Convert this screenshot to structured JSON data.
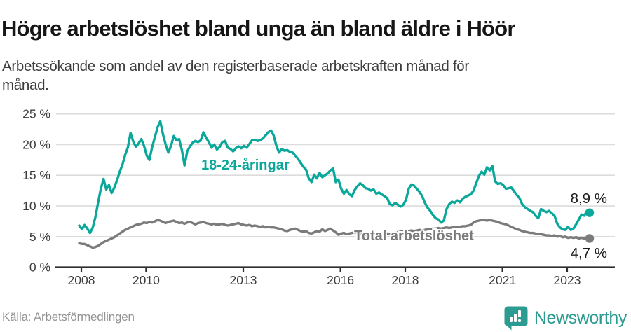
{
  "header": {
    "title": "Högre arbetslöshet bland unga än bland äldre i Höör",
    "subtitle_line1": "Arbetssökande som andel av den registerbaserade arbetskraften månad för",
    "subtitle_line2": "månad."
  },
  "footer": {
    "source": "Källa: Arbetsförmedlingen",
    "brand": "Newsworthy",
    "brand_icon": "newsworthy-chart-bubble-icon"
  },
  "colors": {
    "accent_teal": "#0aa79b",
    "series_gray": "#7b7b7b",
    "logo_teal": "#2c9b91",
    "grid": "#dcdcdc",
    "axis": "#2e2e2e",
    "tick_label": "#3c3c3c",
    "value_label": "#1c1c1c",
    "title_text": "#161616",
    "subtitle_text": "#3d3d3d",
    "source_text": "#929292"
  },
  "chart_data": {
    "type": "line",
    "x_unit": "month",
    "x_start": "2008-01",
    "x_end": "2023-10",
    "x_tick_years": [
      2008,
      2010,
      2013,
      2016,
      2018,
      2021,
      2023
    ],
    "x_tick_labels": [
      "2008",
      "2010",
      "2013",
      "2016",
      "2018",
      "2021",
      "2023"
    ],
    "ylim": [
      0,
      25
    ],
    "y_ticks": [
      0,
      5,
      10,
      15,
      20,
      25
    ],
    "y_tick_labels": [
      "0 %",
      "5 %",
      "10 %",
      "15 %",
      "20 %",
      "25 %"
    ],
    "grid": true,
    "legend_position": "inline-labels",
    "series": [
      {
        "id": "youth",
        "name": "18-24-åringar",
        "color": "#0aa79b",
        "end_label": "8,9 %",
        "end_value": 8.9,
        "values": [
          6.8,
          6.2,
          6.9,
          6.3,
          5.6,
          6.5,
          8.2,
          10.6,
          12.8,
          14.4,
          12.7,
          13.4,
          12.1,
          13.0,
          14.2,
          15.6,
          16.7,
          18.3,
          19.5,
          21.9,
          20.5,
          19.6,
          20.2,
          20.9,
          19.8,
          18.2,
          17.5,
          19.6,
          21.2,
          22.8,
          23.8,
          21.7,
          20.0,
          18.7,
          19.8,
          21.4,
          20.7,
          20.9,
          19.1,
          16.6,
          18.9,
          19.7,
          20.3,
          20.6,
          20.4,
          20.7,
          22.0,
          21.1,
          20.4,
          19.5,
          20.0,
          19.2,
          19.6,
          20.4,
          20.6,
          19.5,
          19.3,
          18.9,
          19.4,
          19.7,
          19.4,
          19.8,
          19.5,
          20.1,
          20.7,
          20.8,
          20.6,
          20.7,
          21.0,
          21.5,
          22.0,
          22.3,
          21.5,
          19.8,
          18.7,
          19.3,
          19.0,
          19.1,
          18.8,
          18.7,
          18.2,
          17.7,
          17.0,
          16.4,
          15.9,
          14.5,
          13.9,
          15.1,
          14.5,
          15.4,
          14.7,
          15.0,
          15.3,
          15.8,
          16.1,
          13.9,
          14.3,
          12.8,
          12.0,
          12.6,
          11.9,
          11.6,
          12.6,
          13.2,
          13.7,
          13.4,
          12.9,
          12.8,
          12.5,
          12.7,
          12.0,
          12.2,
          11.9,
          11.6,
          11.3,
          10.3,
          10.1,
          10.5,
          10.2,
          9.9,
          10.2,
          11.0,
          12.8,
          13.5,
          13.3,
          12.8,
          12.3,
          11.6,
          10.5,
          9.7,
          9.2,
          8.5,
          8.0,
          7.8,
          7.3,
          7.6,
          9.5,
          10.3,
          10.7,
          10.5,
          10.9,
          10.6,
          11.2,
          11.5,
          11.7,
          11.9,
          12.5,
          13.7,
          14.9,
          15.6,
          15.1,
          16.3,
          15.8,
          16.5,
          14.0,
          13.6,
          13.7,
          13.4,
          12.8,
          12.9,
          13.0,
          12.4,
          11.8,
          11.3,
          10.3,
          9.8,
          9.5,
          9.2,
          9.0,
          8.4,
          8.0,
          9.5,
          9.2,
          9.0,
          9.2,
          8.8,
          8.4,
          7.1,
          6.5,
          6.2,
          6.1,
          6.6,
          6.1,
          6.3,
          7.0,
          7.8,
          8.6,
          8.4,
          9.2,
          8.9
        ]
      },
      {
        "id": "total",
        "name": "Total arbetslöshet",
        "color": "#7b7b7b",
        "end_label": "4,7 %",
        "end_value": 4.7,
        "values": [
          3.9,
          3.8,
          3.8,
          3.6,
          3.4,
          3.2,
          3.3,
          3.5,
          3.8,
          4.1,
          4.3,
          4.5,
          4.7,
          4.9,
          5.2,
          5.5,
          5.8,
          6.1,
          6.3,
          6.5,
          6.7,
          6.9,
          7.0,
          7.1,
          7.3,
          7.2,
          7.4,
          7.3,
          7.5,
          7.7,
          7.6,
          7.4,
          7.2,
          7.4,
          7.5,
          7.6,
          7.4,
          7.2,
          7.3,
          7.1,
          7.3,
          7.4,
          7.2,
          7.0,
          7.2,
          7.3,
          7.4,
          7.2,
          7.1,
          7.0,
          7.1,
          6.9,
          7.0,
          7.1,
          6.9,
          6.8,
          6.9,
          7.0,
          7.1,
          7.2,
          7.0,
          6.9,
          6.8,
          6.9,
          6.7,
          6.8,
          6.7,
          6.6,
          6.7,
          6.5,
          6.6,
          6.5,
          6.5,
          6.4,
          6.3,
          6.2,
          6.0,
          5.9,
          6.1,
          6.2,
          6.3,
          6.1,
          5.9,
          5.8,
          5.9,
          5.6,
          5.5,
          5.7,
          5.9,
          5.8,
          6.2,
          5.9,
          6.1,
          6.3,
          6.0,
          5.7,
          5.3,
          5.5,
          5.6,
          5.4,
          5.5,
          5.6,
          5.7,
          5.5,
          5.4,
          5.5,
          5.3,
          5.4,
          5.5,
          5.4,
          5.3,
          5.4,
          5.5,
          5.6,
          5.5,
          5.4,
          5.5,
          5.6,
          5.7,
          5.8,
          5.9,
          5.8,
          5.9,
          6.0,
          5.9,
          6.0,
          6.1,
          6.0,
          6.1,
          6.2,
          6.2,
          6.3,
          6.3,
          6.4,
          6.3,
          6.4,
          6.5,
          6.4,
          6.5,
          6.5,
          6.6,
          6.6,
          6.7,
          6.7,
          6.8,
          6.9,
          7.3,
          7.5,
          7.6,
          7.7,
          7.7,
          7.6,
          7.7,
          7.6,
          7.5,
          7.4,
          7.2,
          7.1,
          7.0,
          6.8,
          6.6,
          6.4,
          6.2,
          6.1,
          5.9,
          5.8,
          5.7,
          5.6,
          5.6,
          5.5,
          5.4,
          5.4,
          5.3,
          5.2,
          5.2,
          5.1,
          5.2,
          5.0,
          5.1,
          4.9,
          5.0,
          4.8,
          4.9,
          4.8,
          4.9,
          4.7,
          4.8,
          4.7,
          4.8,
          4.7
        ]
      }
    ]
  }
}
